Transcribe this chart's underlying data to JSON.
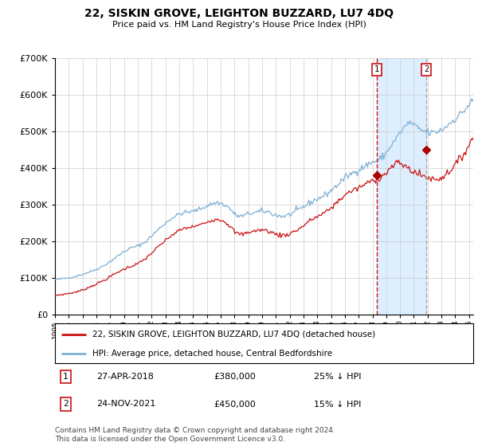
{
  "title": "22, SISKIN GROVE, LEIGHTON BUZZARD, LU7 4DQ",
  "subtitle": "Price paid vs. HM Land Registry's House Price Index (HPI)",
  "hpi_label": "HPI: Average price, detached house, Central Bedfordshire",
  "property_label": "22, SISKIN GROVE, LEIGHTON BUZZARD, LU7 4DQ (detached house)",
  "ylim": [
    0,
    700000
  ],
  "yticks": [
    0,
    100000,
    200000,
    300000,
    400000,
    500000,
    600000,
    700000
  ],
  "transactions": [
    {
      "label": "1",
      "date": "27-APR-2018",
      "price": 380000,
      "pct": "25% ↓ HPI",
      "x_year": 2018.32
    },
    {
      "label": "2",
      "date": "24-NOV-2021",
      "price": 450000,
      "pct": "15% ↓ HPI",
      "x_year": 2021.9
    }
  ],
  "hpi_color": "#7db0d4",
  "property_color": "#cc1111",
  "vline1_color": "#cc1111",
  "vline2_color": "#aaaaaa",
  "dot_color": "#aa0000",
  "shade_color": "#ddeeff",
  "background_color": "#ffffff",
  "grid_color": "#cccccc",
  "footer": "Contains HM Land Registry data © Crown copyright and database right 2024.\nThis data is licensed under the Open Government Licence v3.0.",
  "xlim_start": 1995.0,
  "xlim_end": 2025.3
}
